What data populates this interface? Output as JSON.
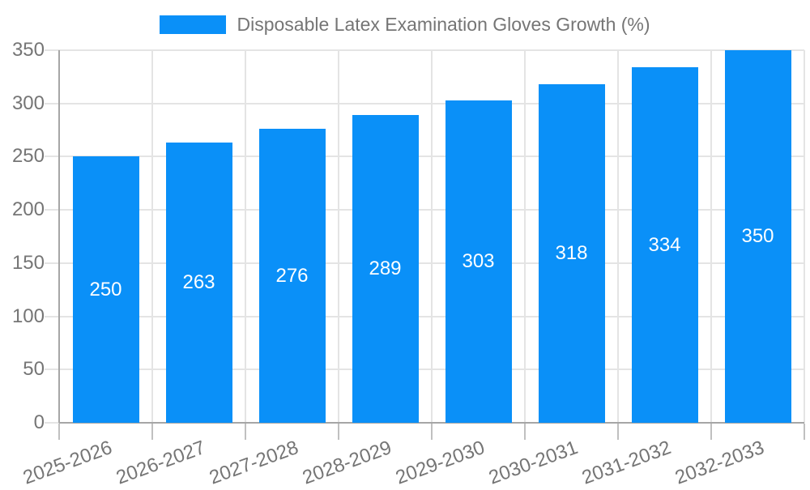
{
  "chart_data": {
    "type": "bar",
    "title": "Disposable Latex Examination Gloves Growth (%)",
    "categories": [
      "2025-2026",
      "2026-2027",
      "2027-2028",
      "2028-2029",
      "2029-2030",
      "2030-2031",
      "2031-2032",
      "2032-2033"
    ],
    "values": [
      250,
      263,
      276,
      289,
      303,
      318,
      334,
      350
    ],
    "xlabel": "",
    "ylabel": "",
    "ylim": [
      0,
      350
    ],
    "yticks": [
      0,
      50,
      100,
      150,
      200,
      250,
      300,
      350
    ],
    "grid": true,
    "legend_position": "top-center",
    "value_labels": "inside-center",
    "colors": {
      "bar": "#0a90f8",
      "bar_label_text": "#ffffff",
      "axis_text": "#757575",
      "axis_line": "#a6a6a6",
      "gridline": "#e4e4e4",
      "tick": "#c0c0c0",
      "background": "#ffffff"
    }
  }
}
